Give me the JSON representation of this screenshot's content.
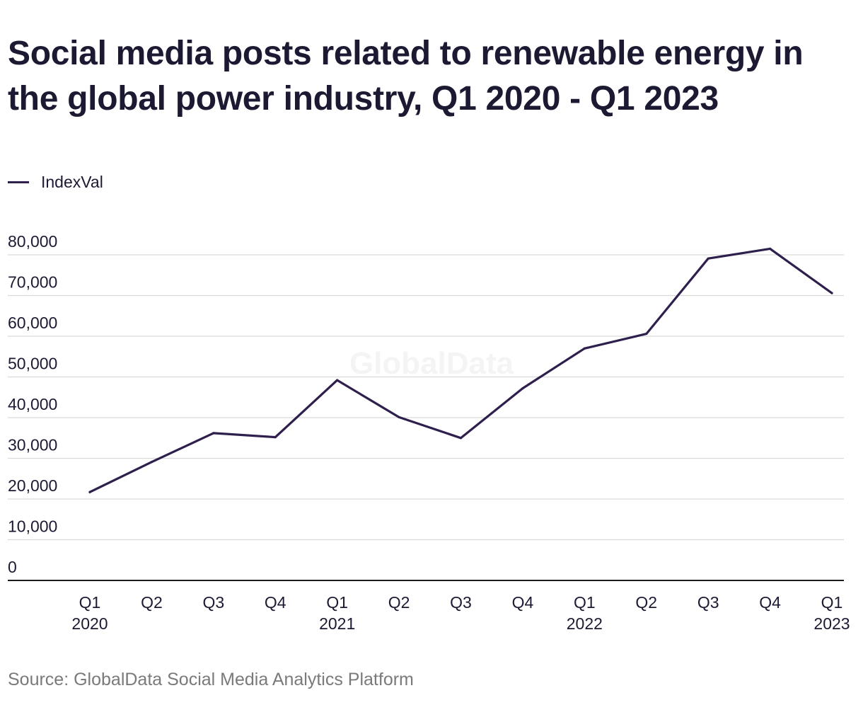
{
  "colors": {
    "line": "#2f1f4d",
    "grid": "#d9d9d9",
    "axis": "#1a1a1a",
    "text": "#1c1a33",
    "source": "#7a7a7a",
    "watermark": "#f4f4f4"
  },
  "watermark": "GlobalData",
  "source": "Source: GlobalData Social Media Analytics Platform",
  "chart_data": {
    "type": "line",
    "title": "Social media posts related to renewable energy in the global power industry, Q1 2020 - Q1 2023",
    "xlabel": "",
    "ylabel": "",
    "ylim": [
      0,
      80000
    ],
    "yticks": [
      "0",
      "10,000",
      "20,000",
      "30,000",
      "40,000",
      "50,000",
      "60,000",
      "70,000",
      "80,000"
    ],
    "grid": true,
    "legend_position": "top-left",
    "categories": [
      [
        "Q1",
        "2020"
      ],
      [
        "Q2",
        ""
      ],
      [
        "Q3",
        ""
      ],
      [
        "Q4",
        ""
      ],
      [
        "Q1",
        "2021"
      ],
      [
        "Q2",
        ""
      ],
      [
        "Q3",
        ""
      ],
      [
        "Q4",
        ""
      ],
      [
        "Q1",
        "2022"
      ],
      [
        "Q2",
        ""
      ],
      [
        "Q3",
        ""
      ],
      [
        "Q4",
        ""
      ],
      [
        "Q1",
        "2023"
      ]
    ],
    "series": [
      {
        "name": "IndexVal",
        "values": [
          21700,
          29100,
          36200,
          35200,
          49200,
          40100,
          35000,
          47200,
          57000,
          60600,
          79100,
          81500,
          70600
        ]
      }
    ]
  }
}
